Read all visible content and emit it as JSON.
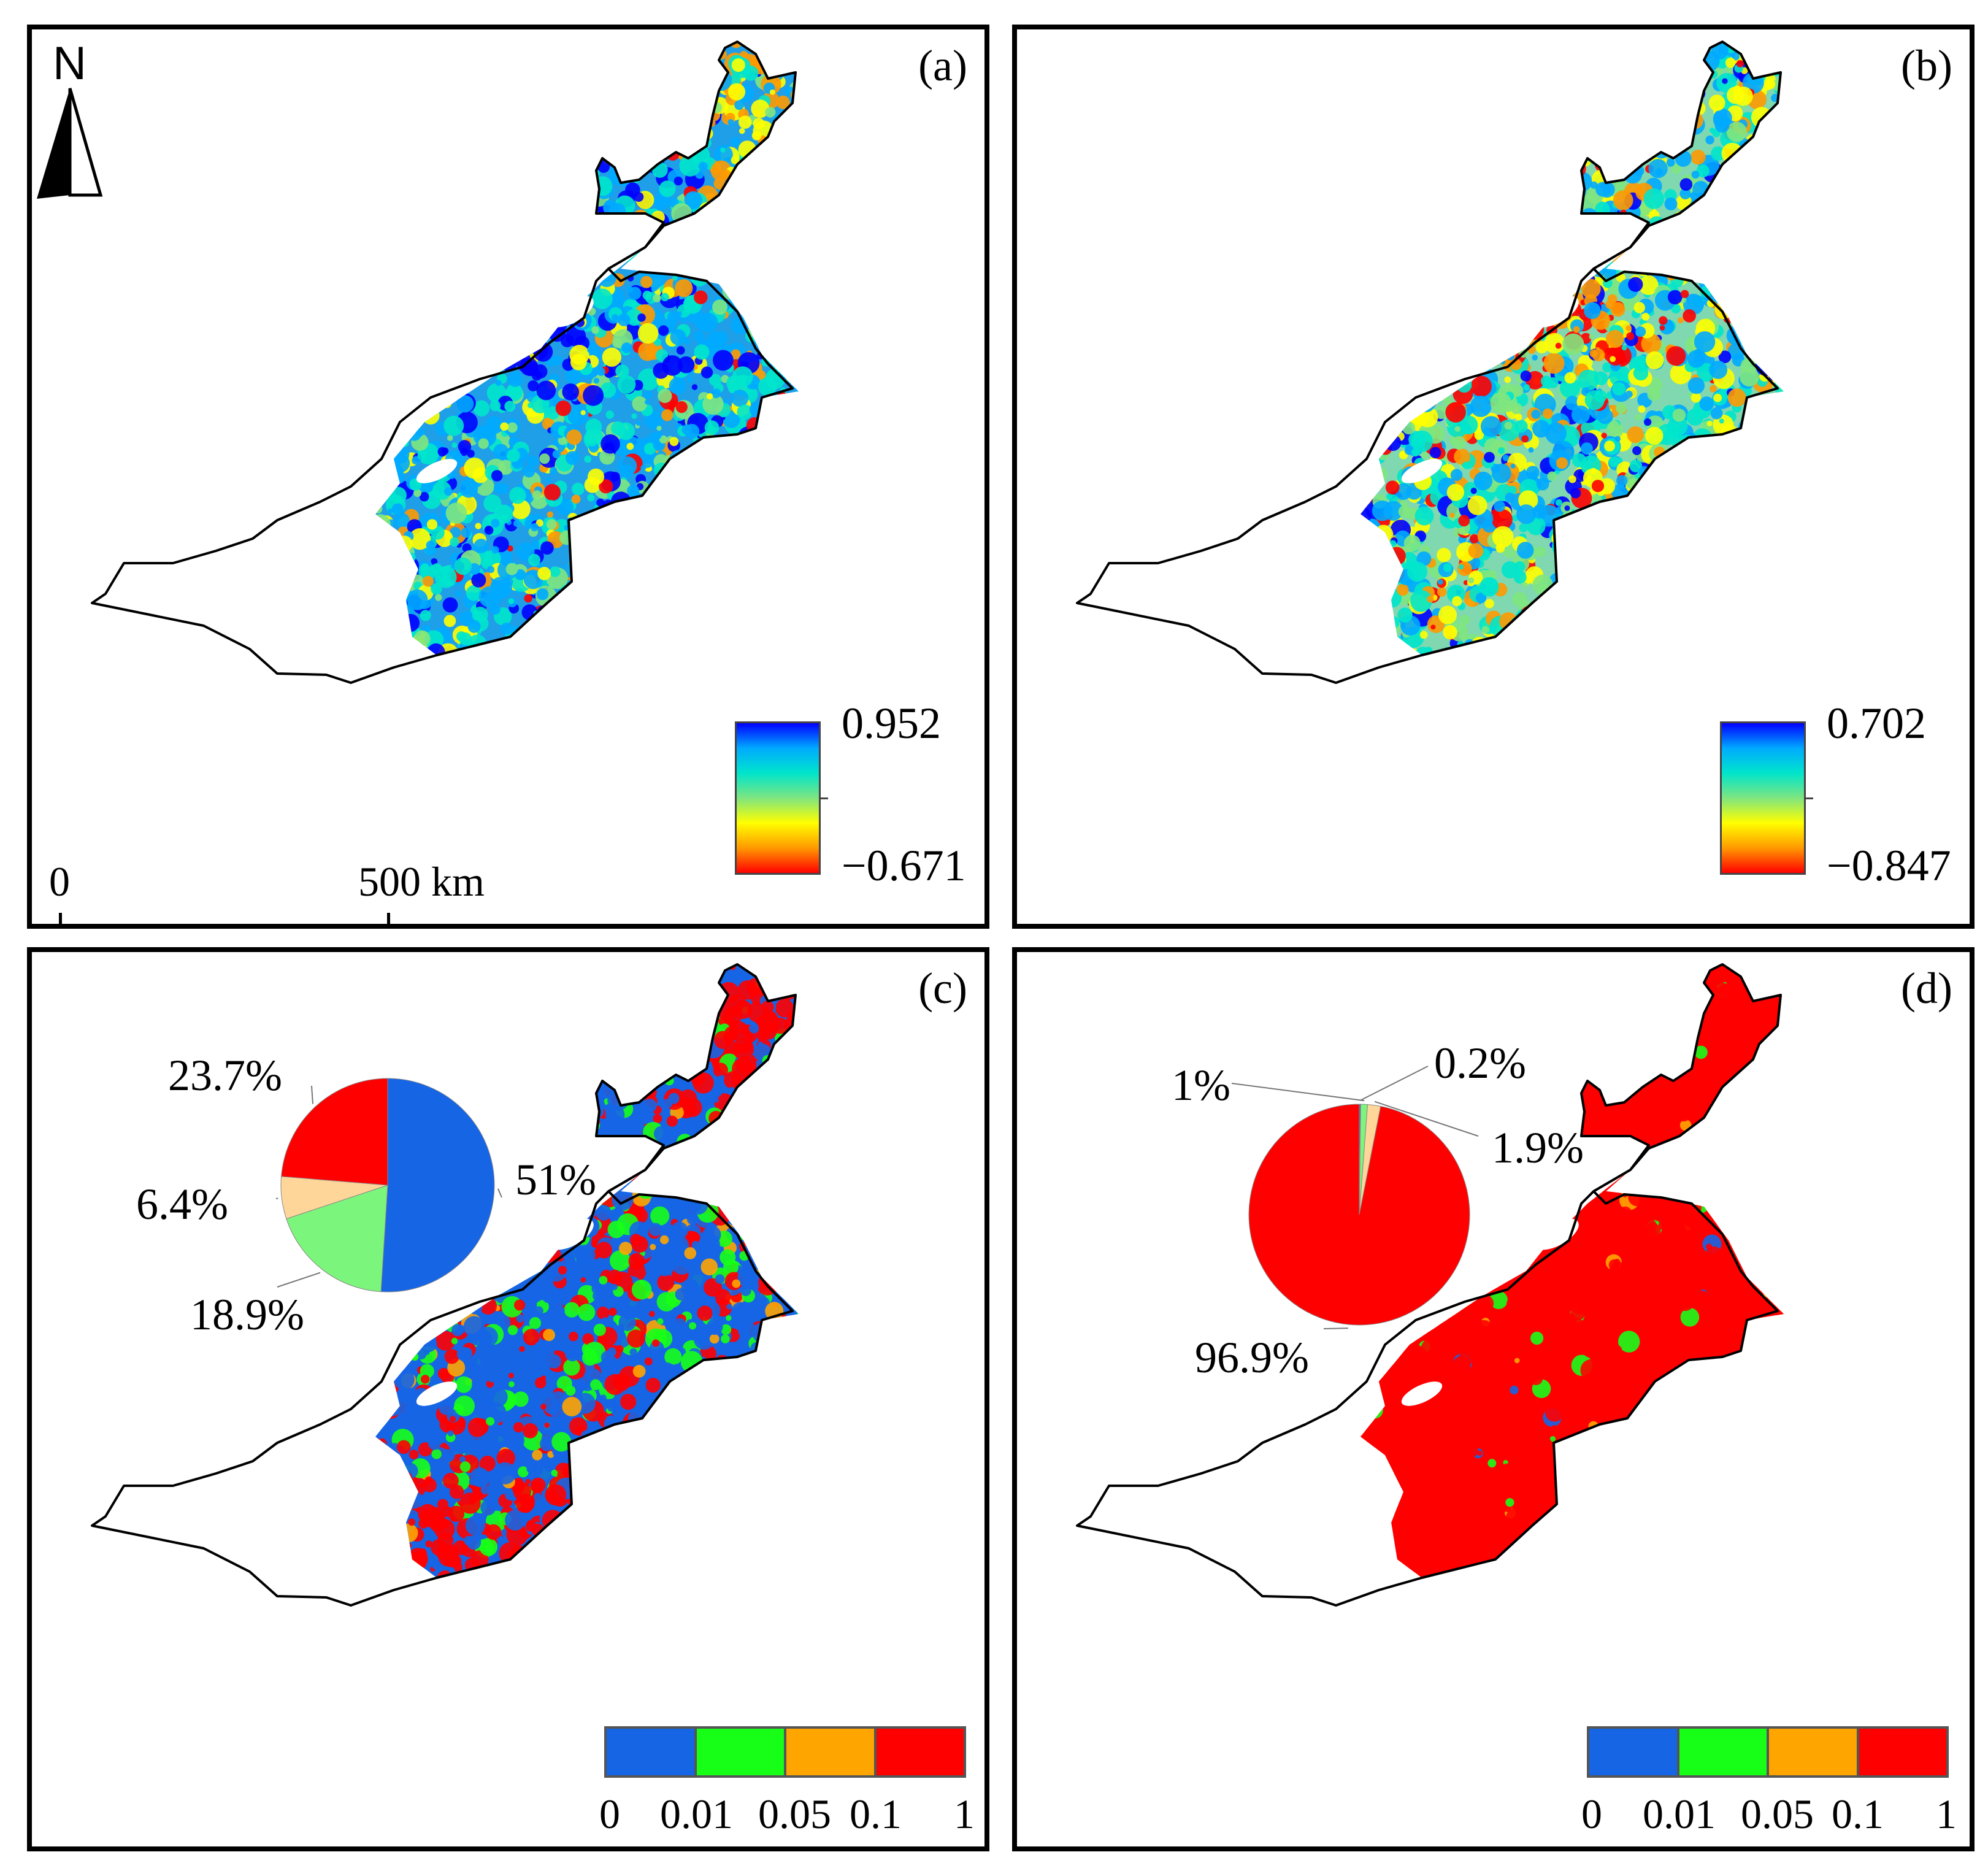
{
  "figure": {
    "panels": [
      {
        "id": "a",
        "label": "(a)",
        "kind": "continuous",
        "colorbar": {
          "max": "0.952",
          "min": "−0.671"
        }
      },
      {
        "id": "b",
        "label": "(b)",
        "kind": "continuous",
        "colorbar": {
          "max": "0.702",
          "min": "−0.847"
        }
      },
      {
        "id": "c",
        "label": "(c)",
        "kind": "categorical"
      },
      {
        "id": "d",
        "label": "(d)",
        "kind": "categorical"
      }
    ],
    "north_arrow": {
      "letter": "N"
    },
    "scale_bar": {
      "start": "0",
      "end": "500 km"
    },
    "significance_legend": {
      "ticks": [
        "0",
        "0.01",
        "0.05",
        "0.1",
        "1"
      ],
      "colors": [
        "#1565e5",
        "#17ff17",
        "#ffa500",
        "#ff0000"
      ]
    },
    "continuous_colors": [
      "#0000ff",
      "#00aaff",
      "#00e5cc",
      "#7fe57f",
      "#ffff00",
      "#ff9900",
      "#ff0000"
    ]
  },
  "chart_data": [
    {
      "type": "pie",
      "panel": "c",
      "title": "",
      "slices": [
        {
          "label": "51%",
          "value": 51.0,
          "color": "#1565e5"
        },
        {
          "label": "18.9%",
          "value": 18.9,
          "color": "#7cf57c"
        },
        {
          "label": "6.4%",
          "value": 6.4,
          "color": "#ffd699"
        },
        {
          "label": "23.7%",
          "value": 23.7,
          "color": "#ff0000"
        }
      ]
    },
    {
      "type": "pie",
      "panel": "d",
      "title": "",
      "slices": [
        {
          "label": "0.2%",
          "value": 0.2,
          "color": "#1565e5"
        },
        {
          "label": "1%",
          "value": 1.0,
          "color": "#7cf57c"
        },
        {
          "label": "1.9%",
          "value": 1.9,
          "color": "#ffd699"
        },
        {
          "label": "96.9%",
          "value": 96.9,
          "color": "#ff0000"
        }
      ]
    }
  ]
}
